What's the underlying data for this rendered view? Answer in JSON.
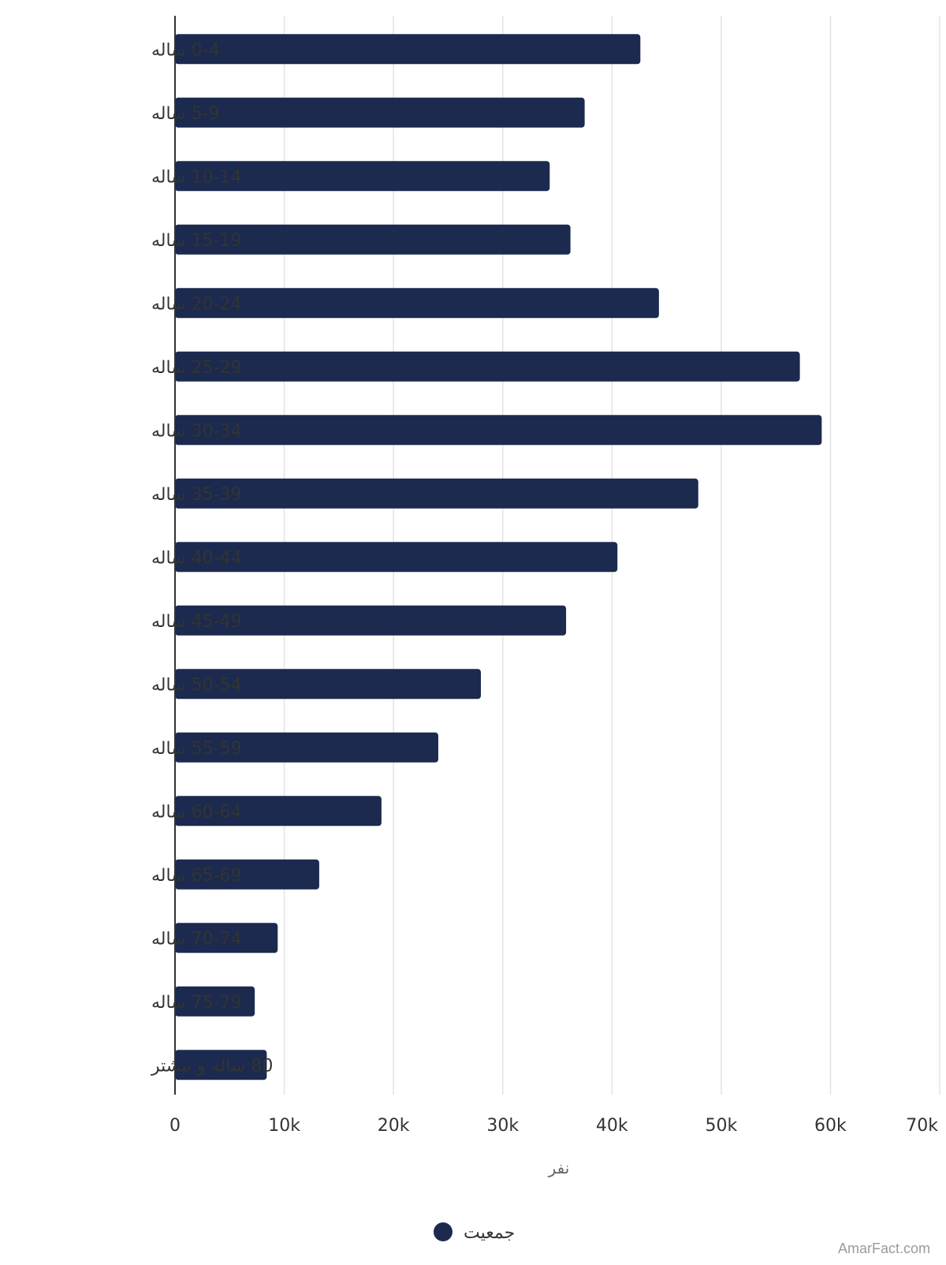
{
  "chart_data": {
    "type": "bar",
    "orientation": "horizontal",
    "categories": [
      "0-4 ساله",
      "5-9 ساله",
      "10-14 ساله",
      "15-19 ساله",
      "20-24 ساله",
      "25-29 ساله",
      "30-34 ساله",
      "35-39 ساله",
      "40-44 ساله",
      "45-49 ساله",
      "50-54 ساله",
      "55-59 ساله",
      "60-64 ساله",
      "65-69 ساله",
      "70-74 ساله",
      "75-79 ساله",
      "80 ساله و بیشتر"
    ],
    "series": [
      {
        "name": "جمعیت",
        "color": "#1b2a4e",
        "values": [
          42600,
          37500,
          34300,
          36200,
          44300,
          57200,
          59200,
          47900,
          40500,
          35800,
          28000,
          24100,
          18900,
          13200,
          9400,
          7300,
          8400
        ]
      }
    ],
    "xlabel": "نفر",
    "ylabel": "",
    "xlim": [
      0,
      70000
    ],
    "ticks": [
      {
        "value": 0,
        "label": "0"
      },
      {
        "value": 10000,
        "label": "10k"
      },
      {
        "value": 20000,
        "label": "20k"
      },
      {
        "value": 30000,
        "label": "30k"
      },
      {
        "value": 40000,
        "label": "40k"
      },
      {
        "value": 50000,
        "label": "50k"
      },
      {
        "value": 60000,
        "label": "60k"
      },
      {
        "value": 70000,
        "label": "70k"
      }
    ],
    "grid": true,
    "legend": {
      "position": "bottom-center"
    }
  },
  "watermark": "AmarFact.com"
}
